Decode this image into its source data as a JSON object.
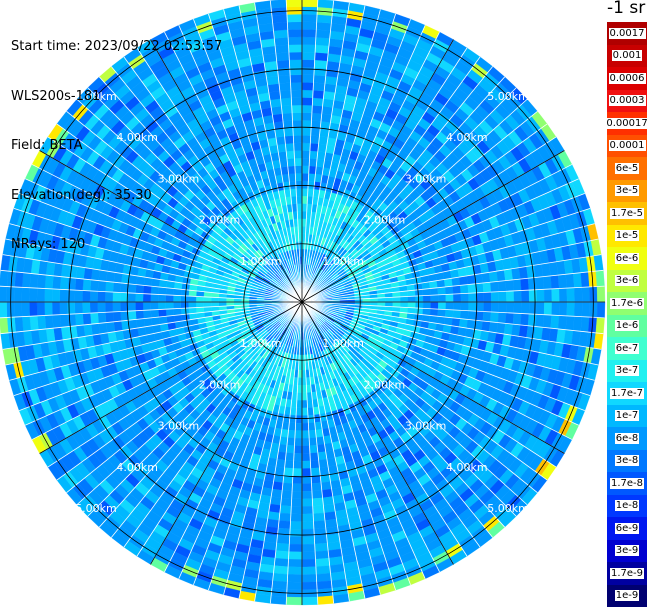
{
  "info": {
    "start_time": "Start time: 2023/09/22 02:53:57",
    "instrument": "WLS200s-181",
    "field": "Field: BETA",
    "elevation": "Elevation(deg): 35.30",
    "nrays": "NRays: 120"
  },
  "colorbar": {
    "unit_label": "-1 sr",
    "levels": [
      {
        "label": "0.0017",
        "color": "#b00000"
      },
      {
        "label": "0.001",
        "color": "#c80000"
      },
      {
        "label": "0.0006",
        "color": "#dc0000"
      },
      {
        "label": "0.0003",
        "color": "#f01010"
      },
      {
        "label": "0.00017",
        "color": "#ff3000"
      },
      {
        "label": "0.0001",
        "color": "#ff5000"
      },
      {
        "label": "6e-5",
        "color": "#ff7000"
      },
      {
        "label": "3e-5",
        "color": "#ff9a00"
      },
      {
        "label": "1.7e-5",
        "color": "#ffc000"
      },
      {
        "label": "1e-5",
        "color": "#ffe800"
      },
      {
        "label": "6e-6",
        "color": "#f0ff10"
      },
      {
        "label": "3e-6",
        "color": "#c0ff40"
      },
      {
        "label": "1.7e-6",
        "color": "#90ff70"
      },
      {
        "label": "1e-6",
        "color": "#60ffa0"
      },
      {
        "label": "6e-7",
        "color": "#40ffd0"
      },
      {
        "label": "3e-7",
        "color": "#20f0f0"
      },
      {
        "label": "1.7e-7",
        "color": "#10d8ff"
      },
      {
        "label": "1e-7",
        "color": "#00b8ff"
      },
      {
        "label": "6e-8",
        "color": "#0098ff"
      },
      {
        "label": "3e-8",
        "color": "#0078ff"
      },
      {
        "label": "1.7e-8",
        "color": "#0058ff"
      },
      {
        "label": "1e-8",
        "color": "#0038ff"
      },
      {
        "label": "6e-9",
        "color": "#0018f0"
      },
      {
        "label": "3e-9",
        "color": "#0000d0"
      },
      {
        "label": "1.7e-9",
        "color": "#0000a0"
      },
      {
        "label": "1e-9",
        "color": "#000070"
      }
    ]
  },
  "chart_data": {
    "type": "heatmap",
    "projection": "polar (PPI scan)",
    "field": "BETA",
    "unit": "-1 sr",
    "scale": "log",
    "n_rays": 120,
    "elevation_deg": 35.3,
    "range_unit": "km",
    "range_max_km": 5.2,
    "range_rings_km": [
      1.0,
      2.0,
      3.0,
      4.0,
      5.0
    ],
    "range_ring_labels": [
      "1.00km",
      "2.00km",
      "3.00km",
      "4.00km",
      "5.00km"
    ],
    "azimuth_spoke_deg": [
      0,
      30,
      60,
      90,
      120,
      150,
      180,
      210,
      240,
      270,
      300,
      330
    ],
    "dominant_range_bins": [
      {
        "range_km": [
          0.0,
          0.9
        ],
        "beta": "6e-8"
      },
      {
        "range_km": [
          0.9,
          2.0
        ],
        "beta": "1.7e-7"
      },
      {
        "range_km": [
          2.0,
          4.7
        ],
        "beta": "6e-8"
      },
      {
        "range_km": [
          4.7,
          5.2
        ],
        "beta": "6e-8"
      }
    ]
  }
}
